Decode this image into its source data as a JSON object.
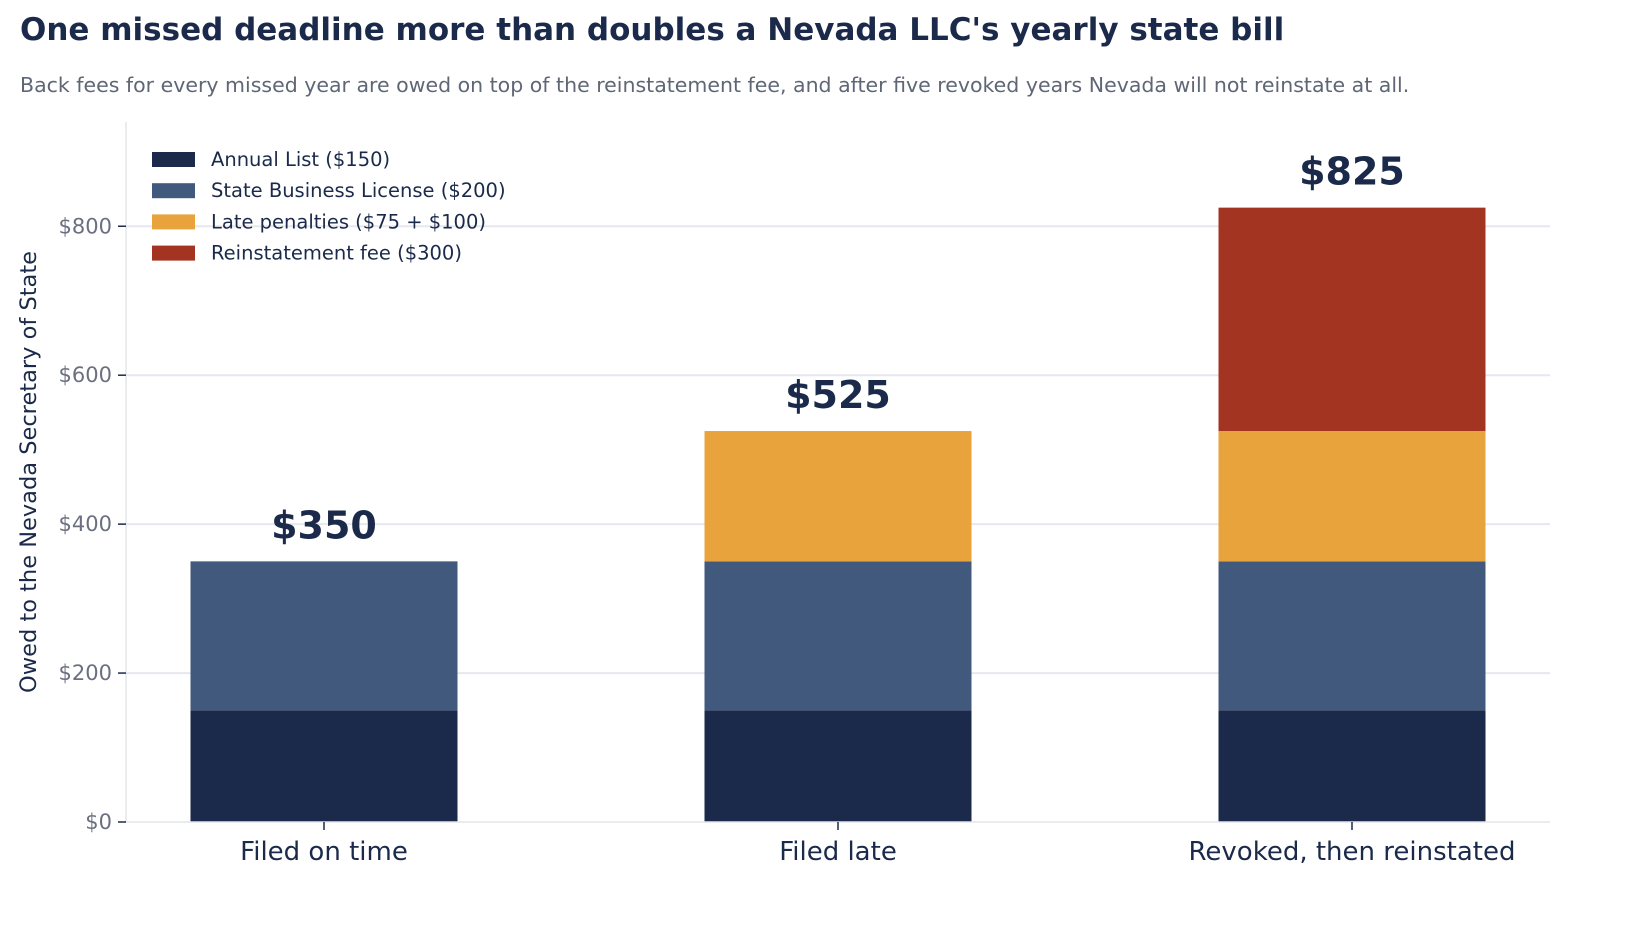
{
  "chart_data": {
    "type": "bar",
    "stacked": true,
    "title": "One missed deadline more than doubles a Nevada LLC's yearly state bill",
    "subtitle": "Back fees for every missed year are owed on top of the reinstatement fee, and after five revoked years Nevada will not reinstate at all.",
    "xlabel": "",
    "ylabel": "Owed to the Nevada Secretary of State",
    "ylim": [
      0,
      940
    ],
    "yticks": [
      0,
      200,
      400,
      600,
      800
    ],
    "ytick_labels": [
      "$0",
      "$200",
      "$400",
      "$600",
      "$800"
    ],
    "grid": true,
    "legend_position": "top-left",
    "categories": [
      "Filed on time",
      "Filed late",
      "Revoked, then reinstated"
    ],
    "series": [
      {
        "name": "Annual List ($150)",
        "color": "#1b2a4a",
        "values": [
          150,
          150,
          150
        ]
      },
      {
        "name": "State Business License ($200)",
        "color": "#41597d",
        "values": [
          200,
          200,
          200
        ]
      },
      {
        "name": "Late penalties ($75 + $100)",
        "color": "#e8a33c",
        "values": [
          0,
          175,
          175
        ]
      },
      {
        "name": "Reinstatement fee ($300)",
        "color": "#a23421",
        "values": [
          0,
          0,
          300
        ]
      }
    ],
    "totals": [
      350,
      525,
      825
    ],
    "total_labels": [
      "$350",
      "$525",
      "$825"
    ]
  }
}
